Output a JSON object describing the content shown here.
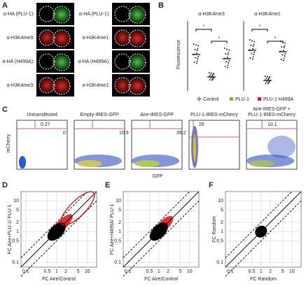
{
  "panel_labels": [
    "A",
    "B",
    "C",
    "D",
    "E",
    "F"
  ],
  "panel_a": {
    "left_labels": [
      "α-HA (PLU-1):",
      "α-H3K4me3:",
      "α-HA (H499A):",
      "α-H3K4me3:"
    ],
    "right_labels": [
      "α-HA (PLU-1):",
      "α-H3K4me1:",
      "α-HA (H499A):",
      "α-H3K4me1:"
    ]
  },
  "panel_b": {
    "titles": [
      "α-H3K4me3",
      "α-H3K4me1"
    ],
    "y_label": "Fluorescence",
    "legend": [
      {
        "name": "Control",
        "color": "#9a9a9a"
      },
      {
        "name": "PLU-1",
        "color": "#7ab648"
      },
      {
        "name": "PLU-1 H499A",
        "color": "#d0202a"
      }
    ],
    "markers": [
      "*",
      "*",
      "*",
      "*"
    ]
  },
  "panel_c": {
    "titles": [
      [
        "Untransfected"
      ],
      [
        "Empty-IRES-GFP"
      ],
      [
        "Aire-IRES-GFP"
      ],
      [
        "PLU-1-IRES-mCherry"
      ],
      [
        "Aire-IRES-GFP +",
        "PLU-1-IRES-mCherry"
      ]
    ],
    "quadrant_values": [
      [
        0.27,
        0
      ],
      [
        10.9
      ],
      [
        39.2
      ],
      [
        26
      ],
      [
        10.1
      ]
    ],
    "y_label": "mCherry",
    "x_label": "GFP"
  },
  "panel_def": {
    "lim": [
      0.07,
      20
    ],
    "ticks": [
      0.1,
      0.5,
      1,
      2,
      5,
      10
    ],
    "x_labels": [
      "FC Aire/Control",
      "FC Aire/Control",
      "FC Random"
    ],
    "y_labels": [
      "FC Aire+PLU-1/ PLU-1",
      "FC Aire+H499A/ PLU-1",
      "FC Random"
    ]
  }
}
